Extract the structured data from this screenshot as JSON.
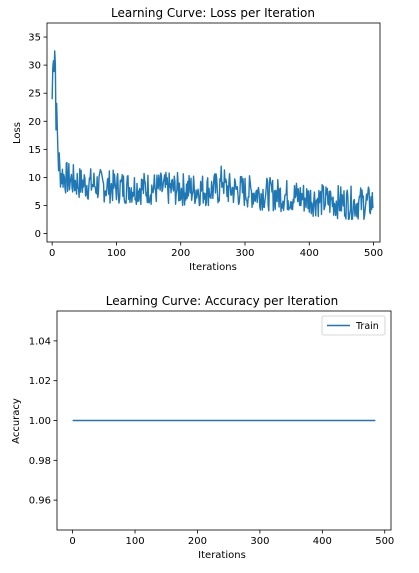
{
  "chart_data": [
    {
      "type": "line",
      "title": "Learning Curve: Loss per Iteration",
      "xlabel": "Iterations",
      "ylabel": "Loss",
      "xlim": [
        -8,
        510
      ],
      "ylim": [
        -1.5,
        37.5
      ],
      "xticks": [
        0,
        100,
        200,
        300,
        400,
        500
      ],
      "yticks": [
        0,
        5,
        10,
        15,
        20,
        25,
        30,
        35
      ],
      "grid": false,
      "color": "#1f77b4",
      "anchors": {
        "x": [
          0,
          2,
          4,
          6,
          8,
          10,
          12,
          15,
          20,
          30,
          40,
          60,
          80,
          100,
          130,
          160,
          200,
          240,
          260,
          265,
          270,
          300,
          340,
          380,
          410,
          440,
          470,
          498
        ],
        "y": [
          24,
          34,
          28,
          22,
          18,
          13,
          11,
          10.5,
          10,
          9.5,
          9,
          8.8,
          8.5,
          8.3,
          8.2,
          8.0,
          7.9,
          7.8,
          8.0,
          10,
          8.0,
          7.5,
          7.0,
          6.6,
          6.0,
          5.7,
          5.4,
          5.5
        ]
      },
      "noise_amplitude": 2.5,
      "n_points": 500
    },
    {
      "type": "line",
      "title": "Learning Curve: Accuracy per Iteration",
      "xlabel": "Iterations",
      "ylabel": "Accuracy",
      "xlim": [
        -25,
        510
      ],
      "ylim": [
        0.945,
        1.055
      ],
      "xticks": [
        0,
        100,
        200,
        300,
        400,
        500
      ],
      "yticks": [
        0.96,
        0.98,
        1.0,
        1.02,
        1.04
      ],
      "ytick_labels": [
        "0.96",
        "0.98",
        "1.00",
        "1.02",
        "1.04"
      ],
      "grid": false,
      "legend": "top-right",
      "series": [
        {
          "name": "Train",
          "x": [
            0,
            485
          ],
          "values": [
            1.0,
            1.0
          ],
          "color": "#1f77b4"
        }
      ]
    }
  ]
}
